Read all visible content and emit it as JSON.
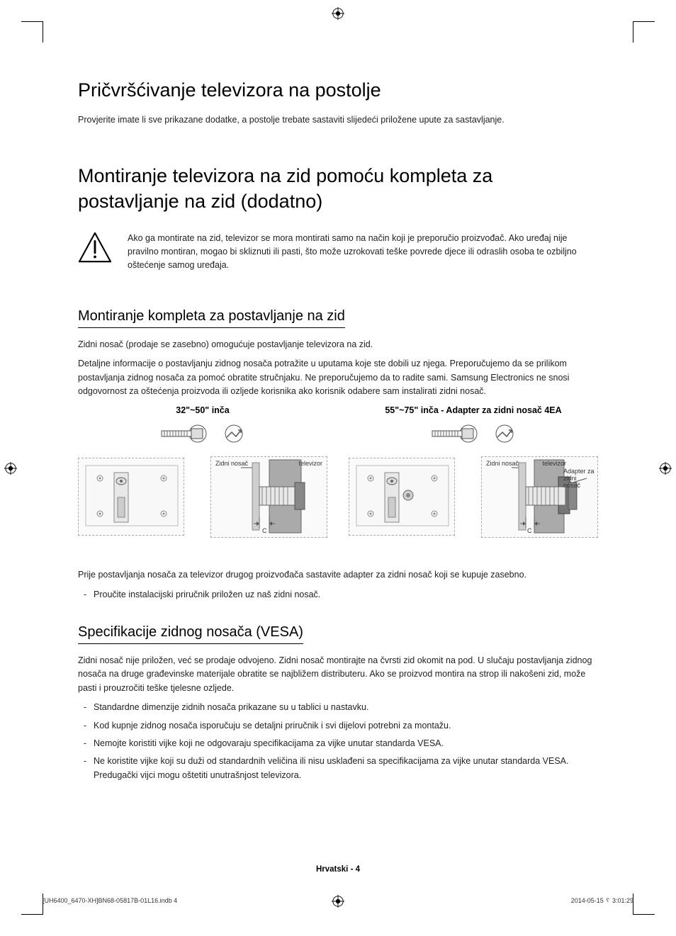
{
  "h1_stand": "Pričvršćivanje televizora na postolje",
  "p_stand": "Provjerite imate li sve prikazane dodatke, a postolje trebate sastaviti slijedeći priložene upute za sastavljanje.",
  "h1_wall": "Montiranje televizora na zid pomoću kompleta za postavljanje na zid (dodatno)",
  "warn_text": "Ako ga montirate na zid, televizor se mora montirati samo na način koji je preporučio proizvođač. Ako uređaj nije pravilno montiran, mogao bi skliznuti ili pasti, što može uzrokovati teške povrede djece ili odraslih osoba te ozbiljno oštećenje samog uređaja.",
  "h2_mount": "Montiranje kompleta za postavljanje na zid",
  "p_mount1": "Zidni nosač (prodaje se zasebno) omogućuje postavljanje televizora na zid.",
  "p_mount2": "Detaljne informacije o postavljanju zidnog nosača potražite u uputama koje ste dobili uz njega. Preporučujemo da se prilikom postavljanja zidnog nosača za pomoć obratite stručnjaku. Ne preporučujemo da to radite sami. Samsung Electronics ne snosi odgovornost za oštećenja proizvoda ili ozljede korisnika ako korisnik odabere sam instalirati zidni nosač.",
  "diag_left_title": "32\"~50\" inča",
  "diag_right_title": "55\"~75\" inča - Adapter za zidni nosač 4EA",
  "cs_bracket": "Zidni nosač",
  "cs_tv": "televizor",
  "cs_adapter": "Adapter za zidni nosač",
  "cs_c": "C",
  "p_after_diag": "Prije postavljanja nosača za televizor drugog proizvođača sastavite adapter za zidni nosač koji se kupuje zasebno.",
  "bullet_after_diag": "Proučite instalacijski priručnik priložen uz naš zidni nosač.",
  "h2_vesa": "Specifikacije zidnog nosača (VESA)",
  "p_vesa": "Zidni nosač nije priložen, već se prodaje odvojeno. Zidni nosač montirajte na čvrsti zid okomit na pod. U slučaju postavljanja zidnog nosača na druge građevinske materijale obratite se najbližem distributeru. Ako se proizvod montira na strop ili nakošeni zid, može pasti i prouzročiti teške tjelesne ozljede.",
  "vesa_bullets": [
    "Standardne dimenzije zidnih nosača prikazane su u tablici u nastavku.",
    "Kod kupnje zidnog nosača isporučuju se detaljni priručnik i svi dijelovi potrebni za montažu.",
    "Nemojte koristiti vijke koji ne odgovaraju specifikacijama za vijke unutar standarda VESA.",
    "Ne koristite vijke koji su duži od standardnih veličina ili nisu usklađeni sa specifikacijama za vijke unutar standarda VESA. Predugački vijci mogu oštetiti unutrašnjost televizora."
  ],
  "footer_lang": "Hrvatski - 4",
  "print_file": "[UH6400_6470-XH]BN68-05817B-01L16.indb   4",
  "print_date": "2014-05-15   ␦ 3:01:29"
}
